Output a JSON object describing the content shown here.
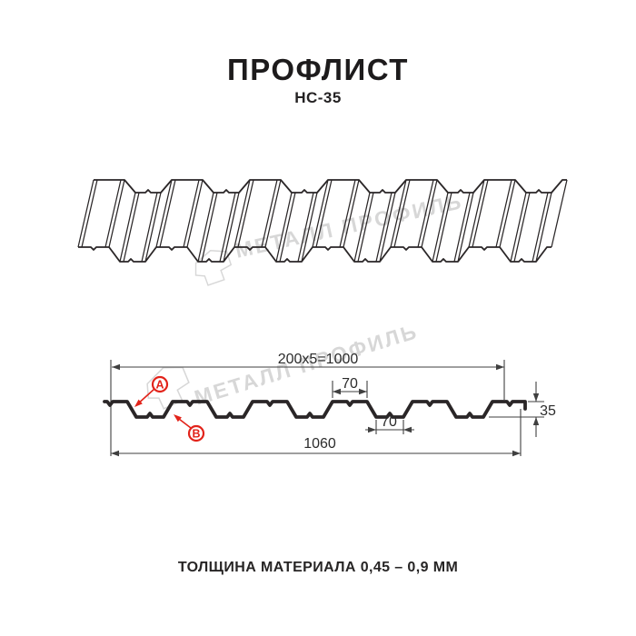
{
  "page": {
    "title": "ПРОФЛИСТ",
    "subtitle": "НС-35",
    "footer": "ТОЛЩИНА МАТЕРИАЛА 0,45 – 0,9 ММ"
  },
  "watermark": {
    "brand": "МЕТАЛЛ ПРОФИЛЬ"
  },
  "cross_section": {
    "labels": {
      "point_a": "A",
      "point_b": "B"
    },
    "dimensions": {
      "module_width": "200x5=1000",
      "crest_width": "70",
      "valley_width": "70",
      "overall_width": "1060",
      "profile_height": "35"
    }
  },
  "colors": {
    "line": "#2a2627",
    "dimension": "#3f3f3f",
    "accent_red": "#e2231a",
    "watermark": "#d7d7d7",
    "background": "#ffffff"
  }
}
